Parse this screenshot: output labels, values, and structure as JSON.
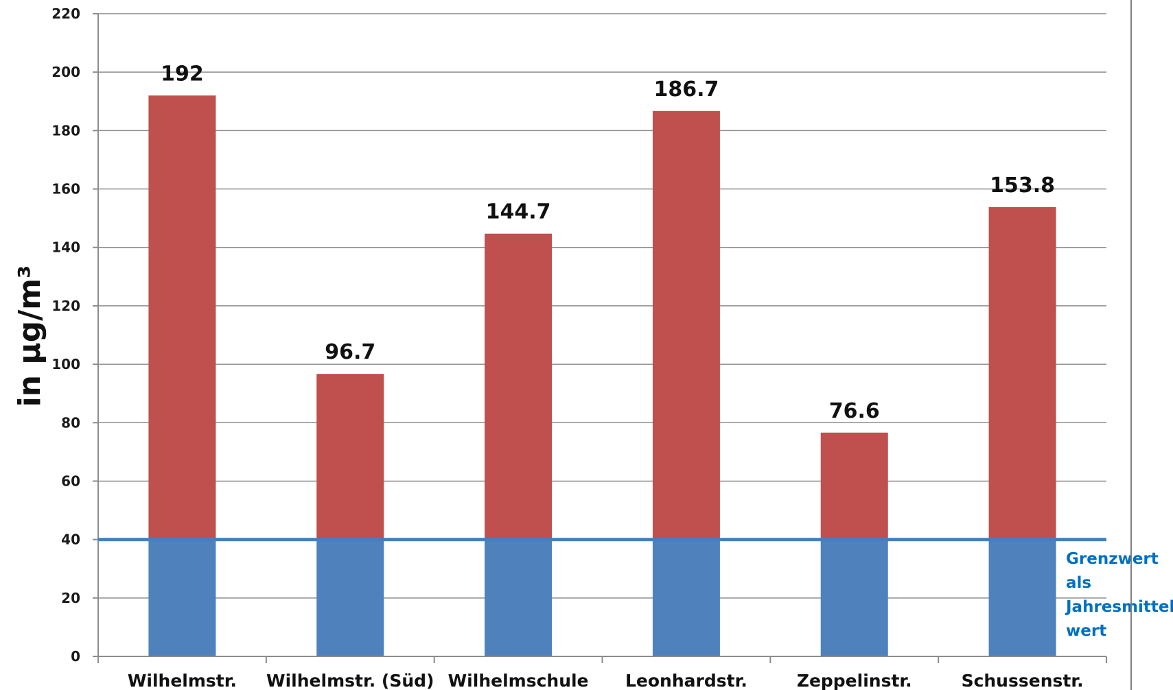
{
  "chart_data": {
    "type": "bar",
    "categories": [
      "Wilhelmstr.",
      "Wilhelmstr. (Süd)",
      "Wilhelmschule",
      "Leonhardstr.",
      "Zeppelinstr.",
      "Schussenstr."
    ],
    "values": [
      192,
      96.7,
      144.7,
      186.7,
      76.6,
      153.8
    ],
    "value_labels": [
      "192",
      "96.7",
      "144.7",
      "186.7",
      "76.6",
      "153.8"
    ],
    "ylabel": "in  µg/m³",
    "xlabel": "",
    "ylim": [
      0,
      220
    ],
    "yticks": [
      0,
      20,
      40,
      60,
      80,
      100,
      120,
      140,
      160,
      180,
      200,
      220
    ],
    "grid": true,
    "threshold": {
      "value": 40,
      "label_lines": [
        "Grenzwert",
        "als",
        "Jahresmittel",
        "wert"
      ]
    },
    "colors": {
      "above_threshold": "#c0504d",
      "below_threshold": "#4f81bd",
      "threshold_line": "#4a7ebb",
      "annotation_text": "#0070c0",
      "grid": "#8c8c8c"
    }
  }
}
